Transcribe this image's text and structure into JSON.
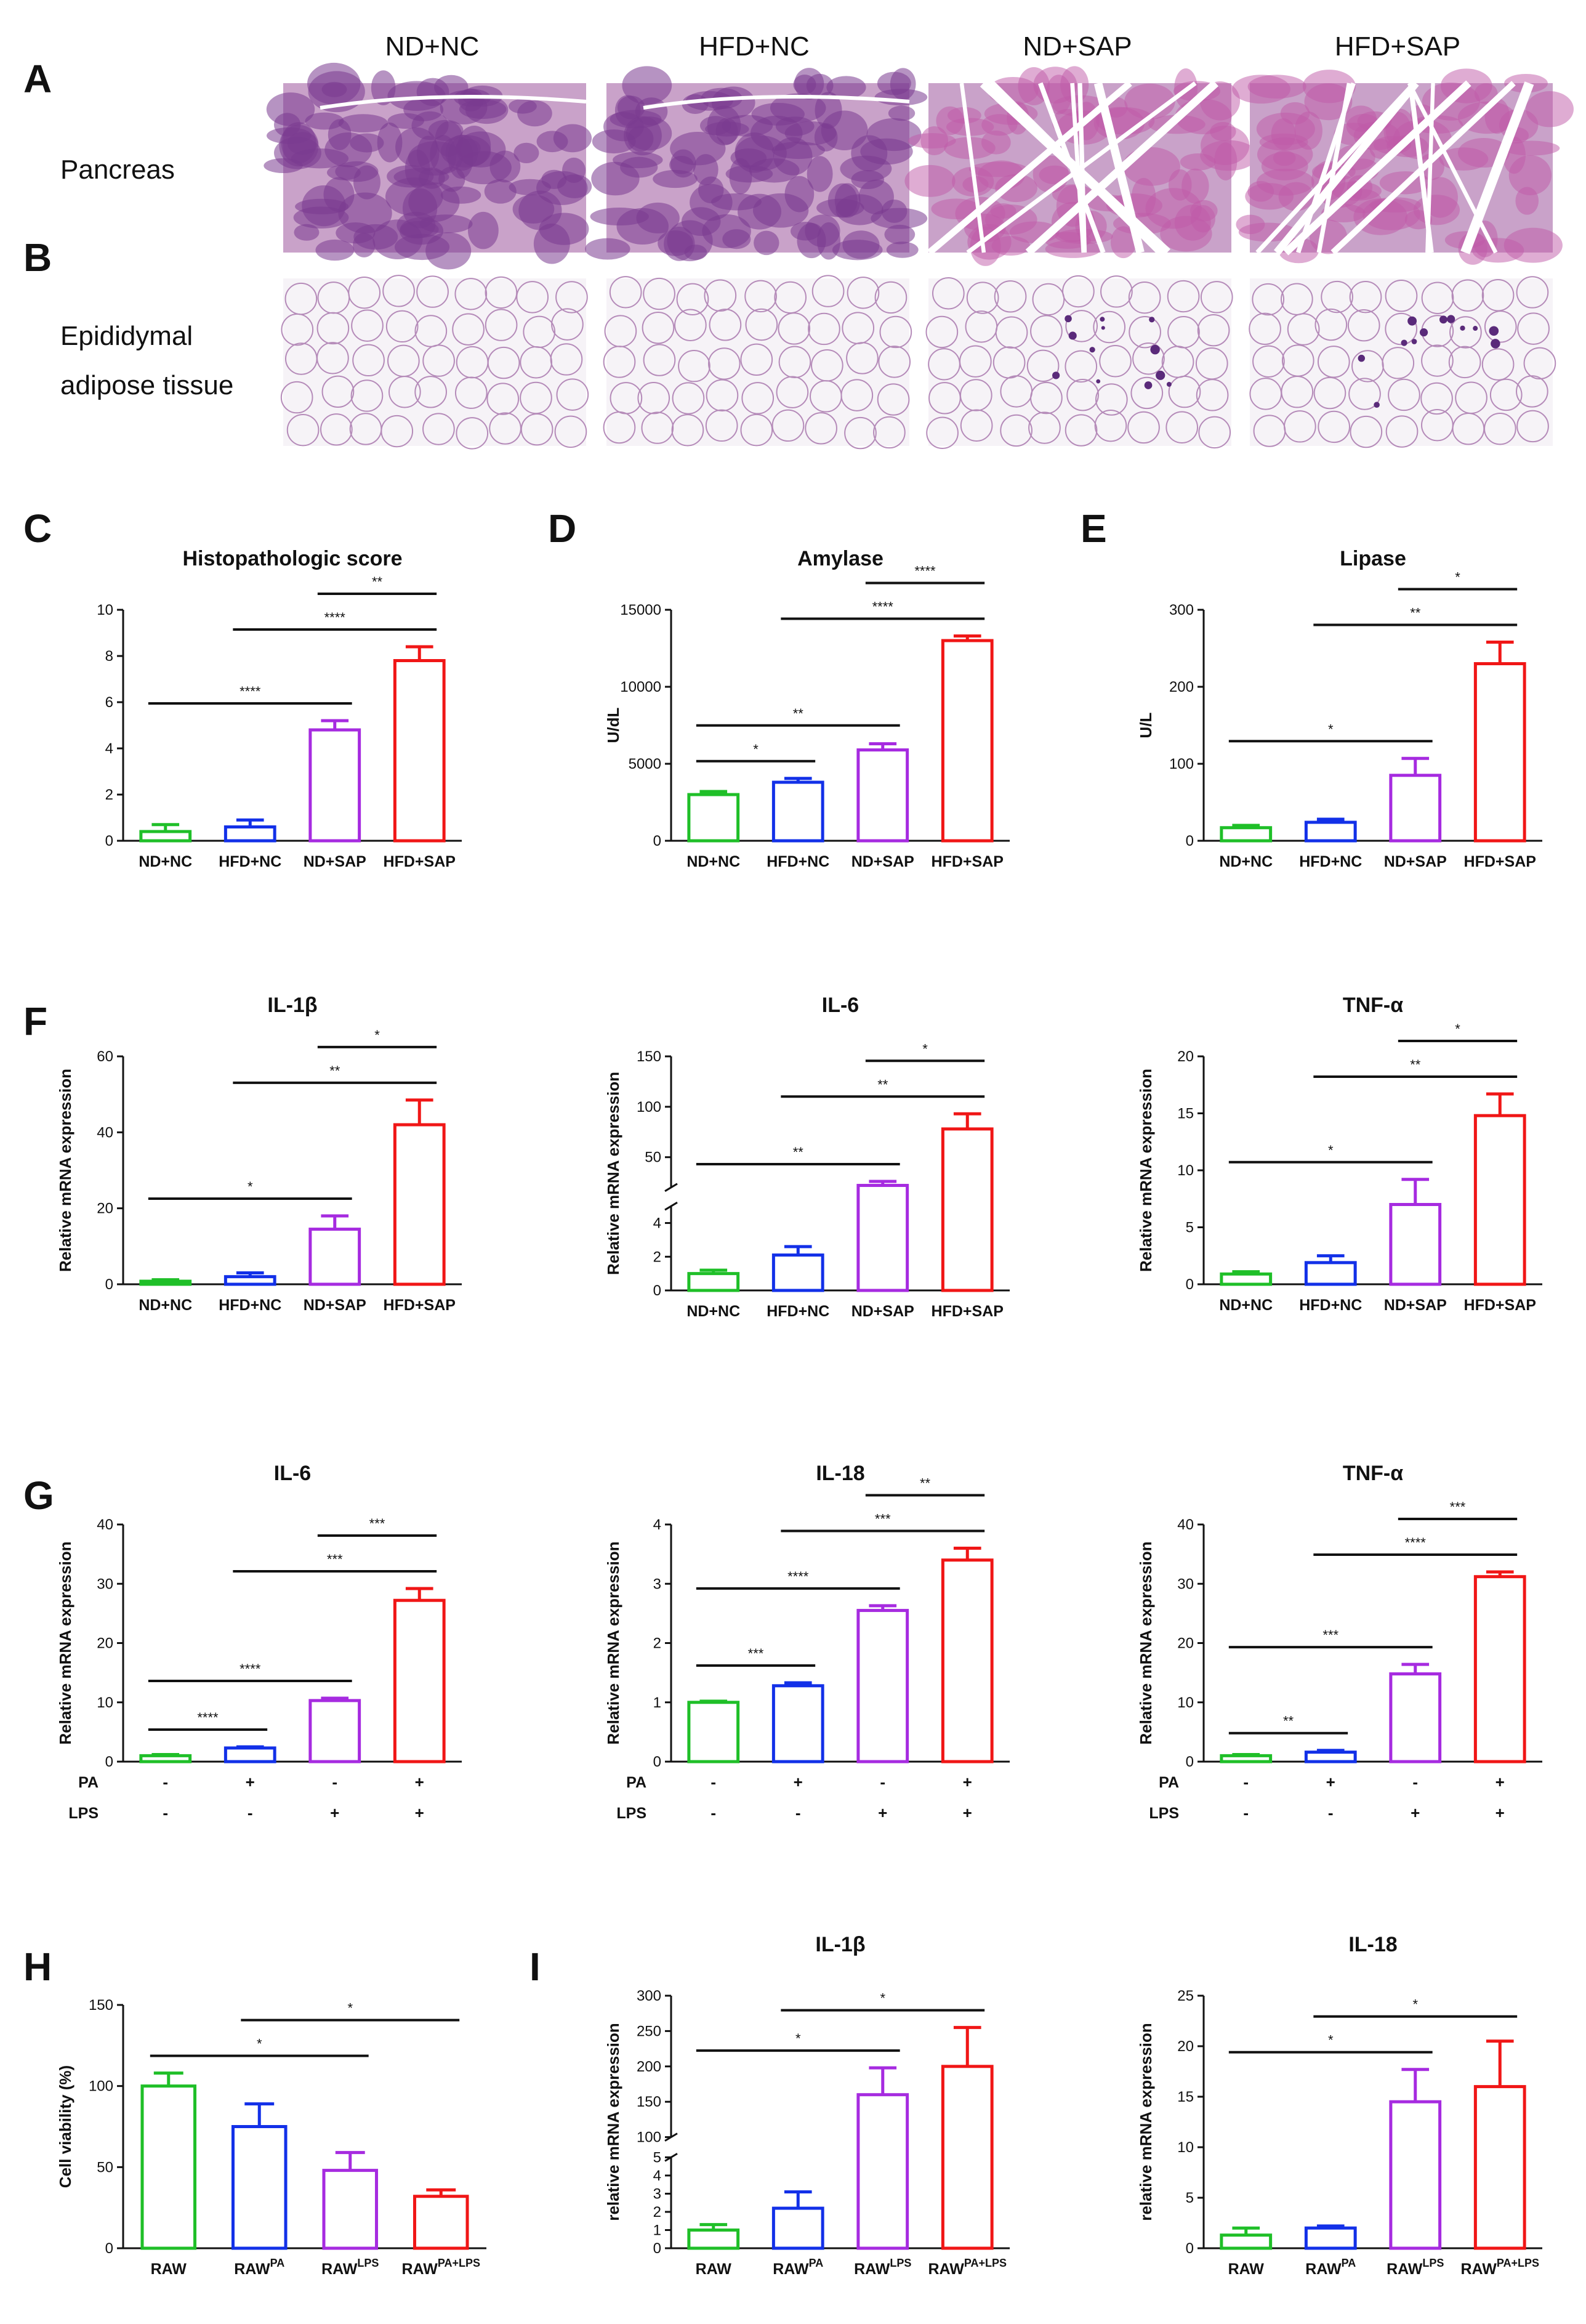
{
  "panel_letters": [
    "A",
    "B",
    "C",
    "D",
    "E",
    "F",
    "G",
    "H",
    "I"
  ],
  "histology": {
    "columns": [
      "ND+NC",
      "HFD+NC",
      "ND+SAP",
      "HFD+SAP"
    ],
    "rows": [
      {
        "label_lines": [
          "Pancreas"
        ],
        "stain_color": "#7a3b8f",
        "bg_color": "#c9a2c9"
      },
      {
        "label_lines": [
          "Epididymal",
          "adipose tissue"
        ],
        "stain_color": "#b58bb9",
        "bg_color": "#f6f3f7"
      }
    ]
  },
  "colors": {
    "green": "#1fbf28",
    "blue": "#1230e8",
    "purple": "#a62be0",
    "red": "#f01616",
    "black": "#111111"
  },
  "chart_data": [
    {
      "panel": "C",
      "type": "bar",
      "title": "Histopathologic score",
      "ylabel": "",
      "categories": [
        "ND+NC",
        "HFD+NC",
        "ND+SAP",
        "HFD+SAP"
      ],
      "values": [
        0.4,
        0.6,
        4.8,
        7.8
      ],
      "errors": [
        0.3,
        0.3,
        0.4,
        0.6
      ],
      "ylim": [
        0,
        10
      ],
      "yticks": [
        0,
        2,
        4,
        6,
        8,
        10
      ],
      "significance": [
        {
          "from": 0,
          "to": 2,
          "label": "****"
        },
        {
          "from": 1,
          "to": 3,
          "label": "****"
        },
        {
          "from": 2,
          "to": 3,
          "label": "**"
        }
      ]
    },
    {
      "panel": "D",
      "type": "bar",
      "title": "Amylase",
      "ylabel": "U/dL",
      "categories": [
        "ND+NC",
        "HFD+NC",
        "ND+SAP",
        "HFD+SAP"
      ],
      "values": [
        3000,
        3800,
        5900,
        13000
      ],
      "errors": [
        200,
        250,
        400,
        300
      ],
      "ylim": [
        0,
        15000
      ],
      "yticks": [
        0,
        5000,
        10000,
        15000
      ],
      "significance": [
        {
          "from": 0,
          "to": 1,
          "label": "*"
        },
        {
          "from": 0,
          "to": 2,
          "label": "**"
        },
        {
          "from": 1,
          "to": 3,
          "label": "****"
        },
        {
          "from": 2,
          "to": 3,
          "label": "****"
        }
      ]
    },
    {
      "panel": "E",
      "type": "bar",
      "title": "Lipase",
      "ylabel": "U/L",
      "categories": [
        "ND+NC",
        "HFD+NC",
        "ND+SAP",
        "HFD+SAP"
      ],
      "values": [
        17,
        24,
        85,
        230
      ],
      "errors": [
        3,
        4,
        22,
        28
      ],
      "ylim": [
        0,
        300
      ],
      "yticks": [
        0,
        100,
        200,
        300
      ],
      "significance": [
        {
          "from": 0,
          "to": 2,
          "label": "*"
        },
        {
          "from": 1,
          "to": 3,
          "label": "**"
        },
        {
          "from": 2,
          "to": 3,
          "label": "*"
        }
      ]
    },
    {
      "panel": "F",
      "type": "bar",
      "title": "IL-1β",
      "ylabel": "Relative mRNA expression",
      "categories": [
        "ND+NC",
        "HFD+NC",
        "ND+SAP",
        "HFD+SAP"
      ],
      "values": [
        0.8,
        2,
        14.5,
        42
      ],
      "errors": [
        0.4,
        1,
        3.5,
        6.5
      ],
      "ylim": [
        0,
        60
      ],
      "yticks": [
        0,
        20,
        40,
        60
      ],
      "significance": [
        {
          "from": 0,
          "to": 2,
          "label": "*"
        },
        {
          "from": 1,
          "to": 3,
          "label": "**"
        },
        {
          "from": 2,
          "to": 3,
          "label": "*"
        }
      ]
    },
    {
      "panel": "F",
      "type": "bar",
      "title": "IL-6",
      "ylabel": "Relative mRNA expression",
      "categories": [
        "ND+NC",
        "HFD+NC",
        "ND+SAP",
        "HFD+SAP"
      ],
      "values": [
        1,
        2.1,
        22,
        78
      ],
      "errors": [
        0.2,
        0.5,
        4,
        15
      ],
      "ylim": [
        0,
        150
      ],
      "yticks": [
        0,
        2,
        4,
        50,
        100,
        150
      ],
      "broken_axis": {
        "lower": [
          0,
          5
        ],
        "upper": [
          20,
          150
        ],
        "lower_ticks": [
          0,
          2,
          4
        ],
        "upper_ticks": [
          50,
          100,
          150
        ]
      },
      "significance": [
        {
          "from": 0,
          "to": 2,
          "label": "**"
        },
        {
          "from": 1,
          "to": 3,
          "label": "**"
        },
        {
          "from": 2,
          "to": 3,
          "label": "*"
        }
      ]
    },
    {
      "panel": "F",
      "type": "bar",
      "title": "TNF-α",
      "ylabel": "Relative mRNA expression",
      "categories": [
        "ND+NC",
        "HFD+NC",
        "ND+SAP",
        "HFD+SAP"
      ],
      "values": [
        0.9,
        1.9,
        7,
        14.8
      ],
      "errors": [
        0.2,
        0.6,
        2.2,
        1.9
      ],
      "ylim": [
        0,
        20
      ],
      "yticks": [
        0,
        5,
        10,
        15,
        20
      ],
      "significance": [
        {
          "from": 0,
          "to": 2,
          "label": "*"
        },
        {
          "from": 1,
          "to": 3,
          "label": "**"
        },
        {
          "from": 2,
          "to": 3,
          "label": "*"
        }
      ]
    },
    {
      "panel": "G",
      "type": "bar",
      "title": "IL-6",
      "ylabel": "Relative mRNA expression",
      "treatments": [
        {
          "name": "PA",
          "signs": [
            "-",
            "+",
            "-",
            "+"
          ]
        },
        {
          "name": "LPS",
          "signs": [
            "-",
            "-",
            "+",
            "+"
          ]
        }
      ],
      "values": [
        1,
        2.3,
        10.3,
        27.2
      ],
      "errors": [
        0.2,
        0.2,
        0.4,
        2
      ],
      "ylim": [
        0,
        40
      ],
      "yticks": [
        0,
        10,
        20,
        30,
        40
      ],
      "significance": [
        {
          "from": 0,
          "to": 1,
          "label": "****"
        },
        {
          "from": 0,
          "to": 2,
          "label": "****"
        },
        {
          "from": 1,
          "to": 3,
          "label": "***"
        },
        {
          "from": 2,
          "to": 3,
          "label": "***"
        }
      ]
    },
    {
      "panel": "G",
      "type": "bar",
      "title": "IL-18",
      "ylabel": "Relative mRNA expression",
      "treatments": [
        {
          "name": "PA",
          "signs": [
            "-",
            "+",
            "-",
            "+"
          ]
        },
        {
          "name": "LPS",
          "signs": [
            "-",
            "-",
            "+",
            "+"
          ]
        }
      ],
      "values": [
        1,
        1.28,
        2.55,
        3.4
      ],
      "errors": [
        0.02,
        0.05,
        0.08,
        0.2
      ],
      "ylim": [
        0,
        4
      ],
      "yticks": [
        0,
        1,
        2,
        3,
        4
      ],
      "significance": [
        {
          "from": 0,
          "to": 1,
          "label": "***"
        },
        {
          "from": 0,
          "to": 2,
          "label": "****"
        },
        {
          "from": 1,
          "to": 3,
          "label": "***"
        },
        {
          "from": 2,
          "to": 3,
          "label": "**"
        }
      ]
    },
    {
      "panel": "G",
      "type": "bar",
      "title": "TNF-α",
      "ylabel": "Relative mRNA expression",
      "treatments": [
        {
          "name": "PA",
          "signs": [
            "-",
            "+",
            "-",
            "+"
          ]
        },
        {
          "name": "LPS",
          "signs": [
            "-",
            "-",
            "+",
            "+"
          ]
        }
      ],
      "values": [
        1,
        1.6,
        14.8,
        31.2
      ],
      "errors": [
        0.2,
        0.3,
        1.6,
        0.8
      ],
      "ylim": [
        0,
        40
      ],
      "yticks": [
        0,
        10,
        20,
        30,
        40
      ],
      "significance": [
        {
          "from": 0,
          "to": 1,
          "label": "**"
        },
        {
          "from": 0,
          "to": 2,
          "label": "***"
        },
        {
          "from": 1,
          "to": 3,
          "label": "****"
        },
        {
          "from": 2,
          "to": 3,
          "label": "***"
        }
      ]
    },
    {
      "panel": "H",
      "type": "bar",
      "title": "",
      "ylabel": "Cell viability (%)",
      "categories": [
        {
          "base": "RAW",
          "sup": ""
        },
        {
          "base": "RAW",
          "sup": "PA"
        },
        {
          "base": "RAW",
          "sup": "LPS"
        },
        {
          "base": "RAW",
          "sup": "PA+LPS"
        }
      ],
      "values": [
        100,
        75,
        48,
        32
      ],
      "errors": [
        8,
        14,
        11,
        4
      ],
      "ylim": [
        0,
        150
      ],
      "yticks": [
        0,
        50,
        100,
        150
      ],
      "significance": [
        {
          "from": 0,
          "to": 2,
          "label": "*"
        },
        {
          "from": 1,
          "to": 3,
          "label": "*"
        }
      ]
    },
    {
      "panel": "I",
      "type": "bar",
      "title": "IL-1β",
      "ylabel": "relative mRNA expression",
      "categories": [
        {
          "base": "RAW",
          "sup": ""
        },
        {
          "base": "RAW",
          "sup": "PA"
        },
        {
          "base": "RAW",
          "sup": "LPS"
        },
        {
          "base": "RAW",
          "sup": "PA+LPS"
        }
      ],
      "values": [
        1,
        2.2,
        160,
        200
      ],
      "errors": [
        0.3,
        0.9,
        38,
        55
      ],
      "ylim": [
        0,
        300
      ],
      "yticks": [
        0,
        1,
        2,
        3,
        4,
        5,
        100,
        150,
        200,
        250,
        300
      ],
      "broken_axis": {
        "lower": [
          0,
          5
        ],
        "upper": [
          100,
          300
        ],
        "lower_ticks": [
          0,
          1,
          2,
          3,
          4,
          5
        ],
        "upper_ticks": [
          100,
          150,
          200,
          250,
          300
        ]
      },
      "significance": [
        {
          "from": 0,
          "to": 2,
          "label": "*"
        },
        {
          "from": 1,
          "to": 3,
          "label": "*"
        }
      ]
    },
    {
      "panel": "I",
      "type": "bar",
      "title": "IL-18",
      "ylabel": "relative mRNA expression",
      "categories": [
        {
          "base": "RAW",
          "sup": ""
        },
        {
          "base": "RAW",
          "sup": "PA"
        },
        {
          "base": "RAW",
          "sup": "LPS"
        },
        {
          "base": "RAW",
          "sup": "PA+LPS"
        }
      ],
      "values": [
        1.3,
        2,
        14.5,
        16
      ],
      "errors": [
        0.7,
        0.2,
        3.2,
        4.5
      ],
      "ylim": [
        0,
        25
      ],
      "yticks": [
        0,
        5,
        10,
        15,
        20,
        25
      ],
      "significance": [
        {
          "from": 0,
          "to": 2,
          "label": "*"
        },
        {
          "from": 1,
          "to": 3,
          "label": "*"
        }
      ]
    }
  ]
}
